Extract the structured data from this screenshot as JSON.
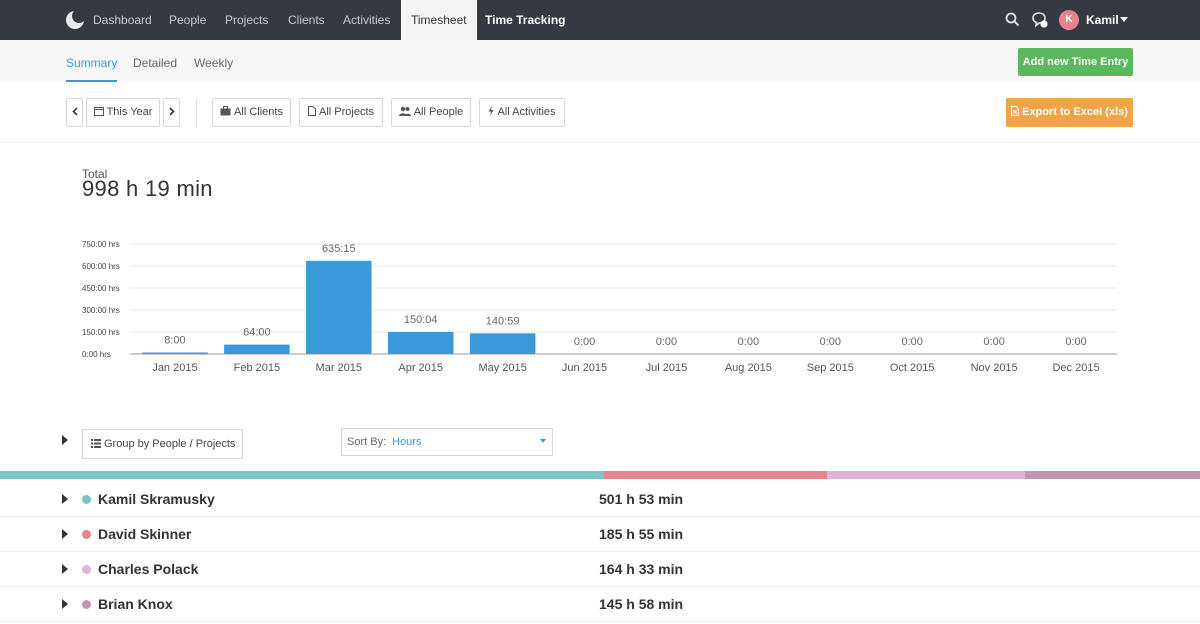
{
  "topnav": {
    "items": [
      {
        "label": "Dashboard"
      },
      {
        "label": "People"
      },
      {
        "label": "Projects"
      },
      {
        "label": "Clients"
      },
      {
        "label": "Activities"
      },
      {
        "label": "Timesheet"
      },
      {
        "label": "Time Tracking"
      }
    ],
    "user": {
      "initial": "K",
      "name": "Kamil"
    }
  },
  "subnav": {
    "tabs": [
      {
        "label": "Summary"
      },
      {
        "label": "Detailed"
      },
      {
        "label": "Weekly"
      }
    ],
    "add_button": "Add new Time Entry"
  },
  "filters": {
    "period": "This Year",
    "clients": "All Clients",
    "projects": "All Projects",
    "people": "All People",
    "activities": "All Activities",
    "export": "Export to Excel (xls)"
  },
  "total": {
    "label": "Total",
    "value": "998 h 19 min"
  },
  "chart_data": {
    "type": "bar",
    "categories": [
      "Jan 2015",
      "Feb 2015",
      "Mar 2015",
      "Apr 2015",
      "May 2015",
      "Jun 2015",
      "Jul 2015",
      "Aug 2015",
      "Sep 2015",
      "Oct 2015",
      "Nov 2015",
      "Dec 2015"
    ],
    "values": [
      8,
      64,
      635.25,
      150.067,
      140.983,
      0,
      0,
      0,
      0,
      0,
      0,
      0
    ],
    "data_labels": [
      "8:00",
      "64:00",
      "635:15",
      "150:04",
      "140:59",
      "0:00",
      "0:00",
      "0:00",
      "0:00",
      "0:00",
      "0:00",
      "0:00"
    ],
    "y_ticks": [
      "0:00 hrs",
      "150:00 hrs",
      "300:00 hrs",
      "450:00 hrs",
      "600:00 hrs",
      "750:00 hrs"
    ],
    "y_tick_values": [
      0,
      150,
      300,
      450,
      600,
      750
    ],
    "ylim": [
      0,
      750
    ],
    "bar_color": "#3a9ad9",
    "grid": true
  },
  "grouping": {
    "label": "Group by People / Projects"
  },
  "sort": {
    "label": "Sort By:",
    "value": "Hours"
  },
  "distribution_colors": [
    "#7bc4c4",
    "#e7838d",
    "#e0b3d6",
    "#c495b2"
  ],
  "people": [
    {
      "name": "Kamil Skramusky",
      "hours": "501 h 53 min",
      "color": "#7bc4c4",
      "share": 0.503
    },
    {
      "name": "David Skinner",
      "hours": "185 h 55 min",
      "color": "#e7838d",
      "share": 0.186
    },
    {
      "name": "Charles Polack",
      "hours": "164 h 33 min",
      "color": "#e0b3d6",
      "share": 0.165
    },
    {
      "name": "Brian Knox",
      "hours": "145 h 58 min",
      "color": "#c495b2",
      "share": 0.146
    }
  ]
}
